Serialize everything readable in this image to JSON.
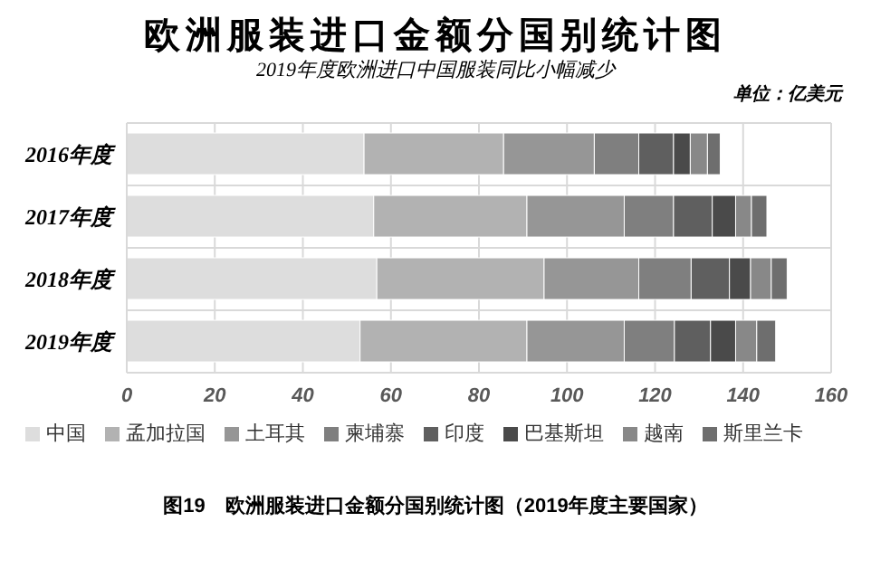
{
  "chart_data": {
    "type": "bar",
    "orientation": "horizontal",
    "stacked": true,
    "title": "欧洲服装进口金额分国别统计图",
    "subtitle": "2019年度欧洲进口中国服装同比小幅减少",
    "annotations": [
      "单位：亿美元",
      "图19　欧洲服装进口金额分国别统计图（2019年度主要国家）"
    ],
    "categories": [
      "2016年度",
      "2017年度",
      "2018年度",
      "2019年度"
    ],
    "series": [
      {
        "name": "中国",
        "color": "#dddddd",
        "values": [
          53.9,
          56.1,
          56.8,
          53.0
        ]
      },
      {
        "name": "孟加拉国",
        "color": "#b2b2b2",
        "values": [
          31.7,
          34.8,
          38.0,
          37.9
        ]
      },
      {
        "name": "土耳其",
        "color": "#969696",
        "values": [
          20.6,
          22.1,
          21.5,
          22.1
        ]
      },
      {
        "name": "柬埔寨",
        "color": "#7f7f7f",
        "values": [
          10.1,
          11.2,
          11.9,
          11.4
        ]
      },
      {
        "name": "印度",
        "color": "#5f5f5f",
        "values": [
          7.9,
          8.8,
          8.7,
          8.2
        ]
      },
      {
        "name": "巴基斯坦",
        "color": "#4a4a4a",
        "values": [
          3.8,
          5.3,
          4.8,
          5.7
        ]
      },
      {
        "name": "越南",
        "color": "#888888",
        "values": [
          3.9,
          3.6,
          4.7,
          4.8
        ]
      },
      {
        "name": "斯里兰卡",
        "color": "#6e6e6e",
        "values": [
          2.9,
          3.5,
          3.6,
          4.3
        ]
      }
    ],
    "xlim": [
      0,
      160
    ],
    "xticks": [
      0,
      20,
      40,
      60,
      80,
      100,
      120,
      140,
      160
    ],
    "grid": true,
    "legend": "bottom"
  }
}
